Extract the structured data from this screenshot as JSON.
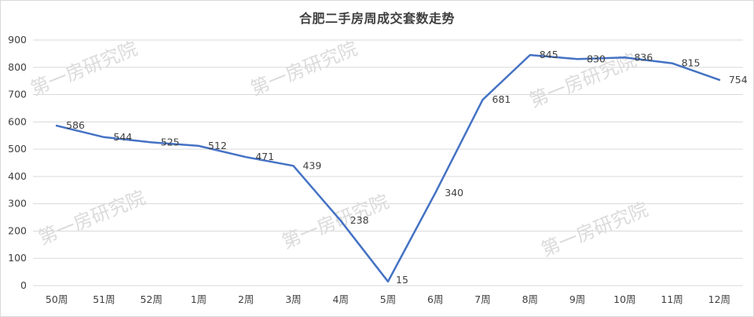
{
  "watermark_text": "第一房研究院",
  "chart_data": {
    "type": "line",
    "title": "合肥二手房周成交套数走势",
    "xlabel": "",
    "ylabel": "",
    "categories": [
      "50周",
      "51周",
      "52周",
      "1周",
      "2周",
      "3周",
      "4周",
      "5周",
      "6周",
      "7周",
      "8周",
      "9周",
      "10周",
      "11周",
      "12周"
    ],
    "series": [
      {
        "values": [
          586,
          544,
          525,
          512,
          471,
          439,
          238,
          15,
          340,
          681,
          845,
          830,
          836,
          815,
          754
        ]
      }
    ],
    "ylim": [
      0,
      900
    ],
    "yticks": [
      0,
      100,
      200,
      300,
      400,
      500,
      600,
      700,
      800,
      900
    ],
    "grid": true,
    "legend": "none",
    "line_color": "#4472c4",
    "grid_color": "#d9d9d9"
  }
}
